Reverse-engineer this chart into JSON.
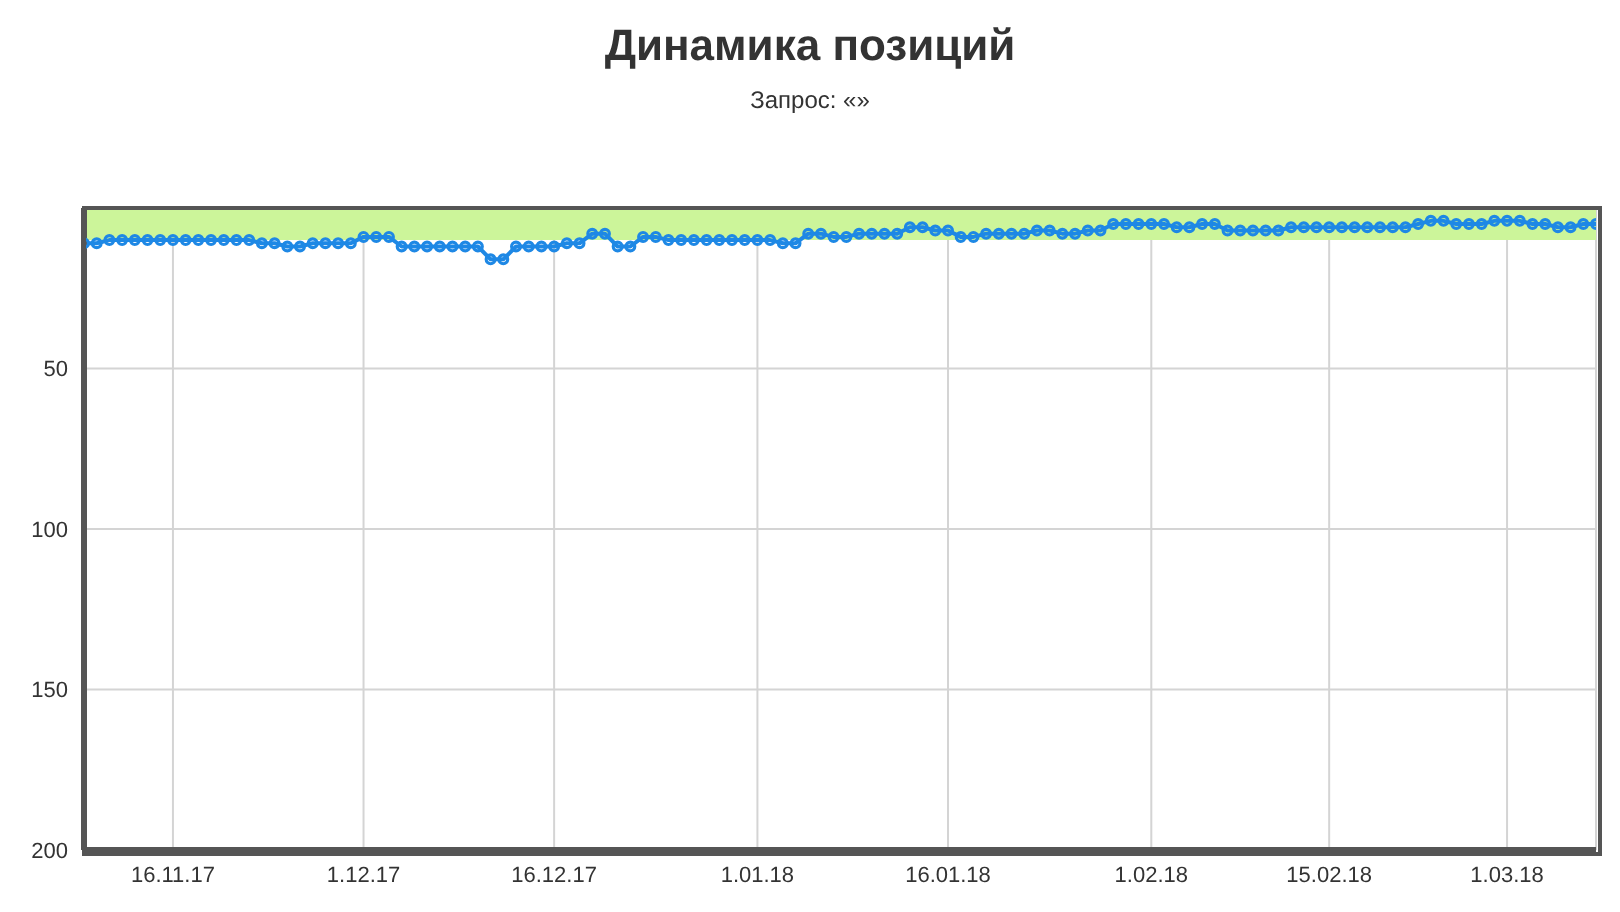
{
  "chart_data": {
    "type": "line",
    "title": "Динамика позиций",
    "subtitle": "Запрос: «»",
    "x": [
      "2017-11-09",
      "2017-11-10",
      "2017-11-11",
      "2017-11-12",
      "2017-11-13",
      "2017-11-14",
      "2017-11-15",
      "2017-11-16",
      "2017-11-17",
      "2017-11-18",
      "2017-11-19",
      "2017-11-20",
      "2017-11-21",
      "2017-11-22",
      "2017-11-23",
      "2017-11-24",
      "2017-11-25",
      "2017-11-26",
      "2017-11-27",
      "2017-11-28",
      "2017-11-29",
      "2017-11-30",
      "2017-12-01",
      "2017-12-02",
      "2017-12-03",
      "2017-12-04",
      "2017-12-05",
      "2017-12-06",
      "2017-12-07",
      "2017-12-08",
      "2017-12-09",
      "2017-12-10",
      "2017-12-11",
      "2017-12-12",
      "2017-12-13",
      "2017-12-14",
      "2017-12-15",
      "2017-12-16",
      "2017-12-17",
      "2017-12-18",
      "2017-12-19",
      "2017-12-20",
      "2017-12-21",
      "2017-12-22",
      "2017-12-23",
      "2017-12-24",
      "2017-12-25",
      "2017-12-26",
      "2017-12-27",
      "2017-12-28",
      "2017-12-29",
      "2017-12-30",
      "2017-12-31",
      "2018-01-01",
      "2018-01-02",
      "2018-01-03",
      "2018-01-04",
      "2018-01-05",
      "2018-01-06",
      "2018-01-07",
      "2018-01-08",
      "2018-01-09",
      "2018-01-10",
      "2018-01-11",
      "2018-01-12",
      "2018-01-13",
      "2018-01-14",
      "2018-01-15",
      "2018-01-16",
      "2018-01-17",
      "2018-01-18",
      "2018-01-19",
      "2018-01-20",
      "2018-01-21",
      "2018-01-22",
      "2018-01-23",
      "2018-01-24",
      "2018-01-25",
      "2018-01-26",
      "2018-01-27",
      "2018-01-28",
      "2018-01-29",
      "2018-01-30",
      "2018-01-31",
      "2018-02-01",
      "2018-02-02",
      "2018-02-03",
      "2018-02-04",
      "2018-02-05",
      "2018-02-06",
      "2018-02-07",
      "2018-02-08",
      "2018-02-09",
      "2018-02-10",
      "2018-02-11",
      "2018-02-12",
      "2018-02-13",
      "2018-02-14",
      "2018-02-15",
      "2018-02-16",
      "2018-02-17",
      "2018-02-18",
      "2018-02-19",
      "2018-02-20",
      "2018-02-21",
      "2018-02-22",
      "2018-02-23",
      "2018-02-24",
      "2018-02-25",
      "2018-02-26",
      "2018-02-27",
      "2018-02-28",
      "2018-03-01",
      "2018-03-02",
      "2018-03-03",
      "2018-03-04",
      "2018-03-05",
      "2018-03-06",
      "2018-03-07",
      "2018-03-08"
    ],
    "series": [
      {
        "color": "#1e88e5",
        "values": [
          11,
          11,
          10,
          10,
          10,
          10,
          10,
          10,
          10,
          10,
          10,
          10,
          10,
          10,
          11,
          11,
          12,
          12,
          11,
          11,
          11,
          11,
          9,
          9,
          9,
          12,
          12,
          12,
          12,
          12,
          12,
          12,
          16,
          16,
          12,
          12,
          12,
          12,
          11,
          11,
          8,
          8,
          12,
          12,
          9,
          9,
          10,
          10,
          10,
          10,
          10,
          10,
          10,
          10,
          10,
          11,
          11,
          8,
          8,
          9,
          9,
          8,
          8,
          8,
          8,
          6,
          6,
          7,
          7,
          9,
          9,
          8,
          8,
          8,
          8,
          7,
          7,
          8,
          8,
          7,
          7,
          5,
          5,
          5,
          5,
          5,
          6,
          6,
          5,
          5,
          7,
          7,
          7,
          7,
          7,
          6,
          6,
          6,
          6,
          6,
          6,
          6,
          6,
          6,
          6,
          5,
          4,
          4,
          5,
          5,
          5,
          4,
          4,
          4,
          5,
          5,
          6,
          6,
          5,
          5
        ]
      }
    ],
    "xlim": [
      "2017-11-09",
      "2018-03-08"
    ],
    "xticks": [
      {
        "value": "2017-11-16",
        "label": "16.11.17"
      },
      {
        "value": "2017-12-01",
        "label": "1.12.17"
      },
      {
        "value": "2017-12-16",
        "label": "16.12.17"
      },
      {
        "value": "2018-01-01",
        "label": "1.01.18"
      },
      {
        "value": "2018-01-16",
        "label": "16.01.18"
      },
      {
        "value": "2018-02-01",
        "label": "1.02.18"
      },
      {
        "value": "2018-02-15",
        "label": "15.02.18"
      },
      {
        "value": "2018-03-01",
        "label": "1.03.18"
      }
    ],
    "ylim": [
      200,
      0
    ],
    "yticks": [
      50,
      100,
      150,
      200
    ],
    "bands": [
      {
        "axis": "y",
        "from": 0,
        "to": 10,
        "color": "#ccf59a"
      }
    ],
    "grid": true,
    "marker": "circle",
    "line_style": "solid",
    "legend": false
  }
}
